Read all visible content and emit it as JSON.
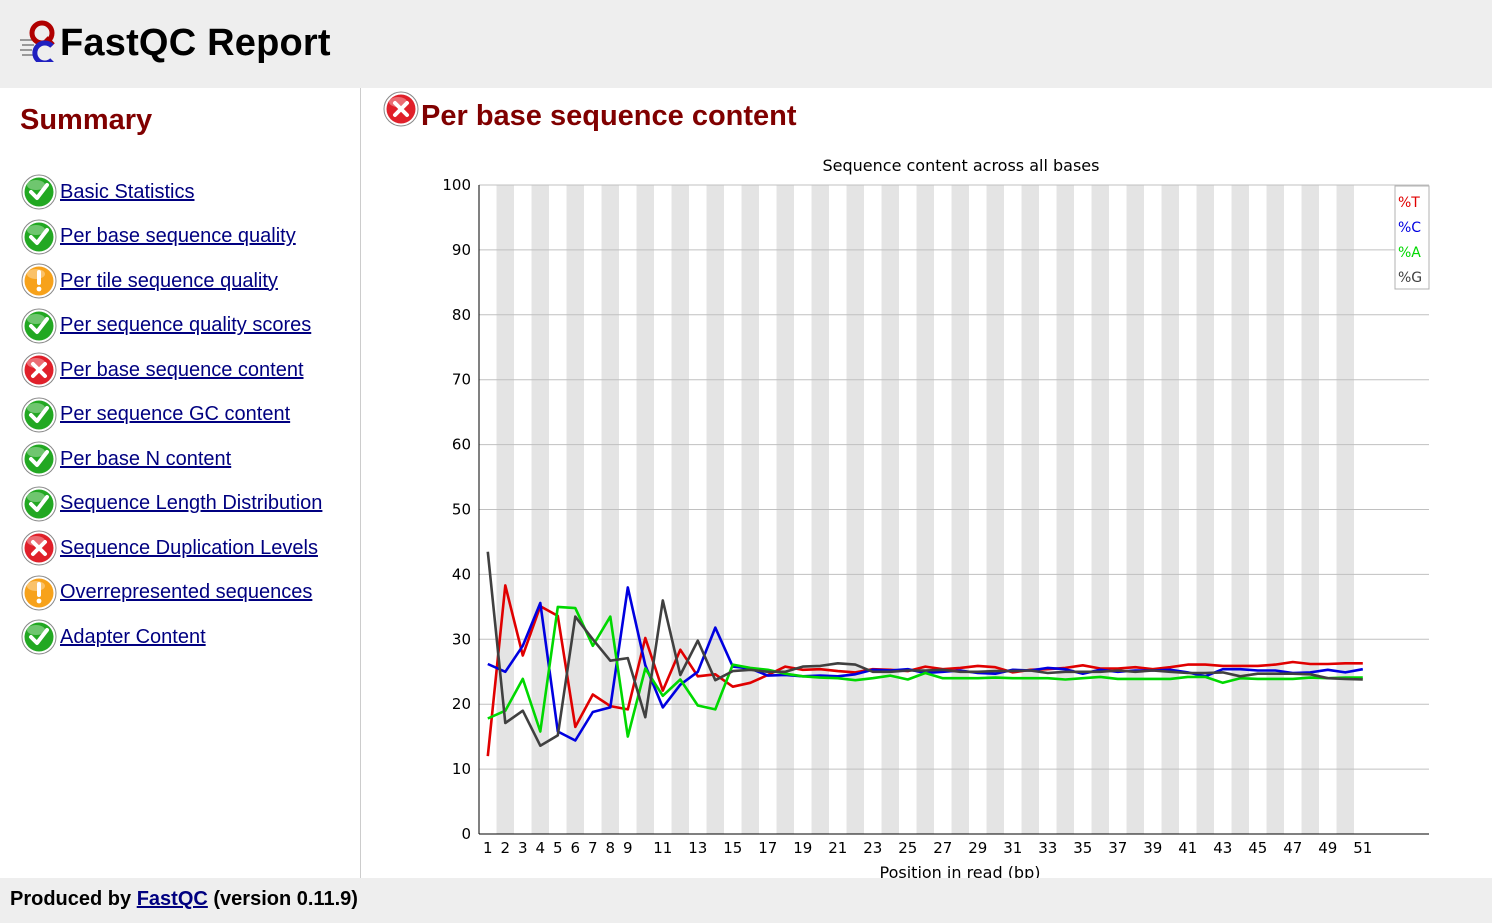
{
  "header": {
    "title": "FastQC Report"
  },
  "summary": {
    "title": "Summary",
    "items": [
      {
        "label": "Basic Statistics",
        "status": "pass"
      },
      {
        "label": "Per base sequence quality",
        "status": "pass"
      },
      {
        "label": "Per tile sequence quality",
        "status": "warn"
      },
      {
        "label": "Per sequence quality scores",
        "status": "pass"
      },
      {
        "label": "Per base sequence content",
        "status": "fail"
      },
      {
        "label": "Per sequence GC content",
        "status": "pass"
      },
      {
        "label": "Per base N content",
        "status": "pass"
      },
      {
        "label": "Sequence Length Distribution",
        "status": "pass"
      },
      {
        "label": "Sequence Duplication Levels",
        "status": "fail"
      },
      {
        "label": "Overrepresented sequences",
        "status": "warn"
      },
      {
        "label": "Adapter Content",
        "status": "pass"
      }
    ]
  },
  "module": {
    "title": "Per base sequence content",
    "status": "fail"
  },
  "colors": {
    "pass": "#22a822",
    "warn": "#f7a21b",
    "fail": "#e0202a",
    "T": "#e00000",
    "C": "#0000e0",
    "A": "#00d800",
    "G": "#404040"
  },
  "chart_data": {
    "type": "line",
    "title": "Sequence content across all bases",
    "xlabel": "Position in read (bp)",
    "ylabel": "",
    "ylim": [
      0,
      100
    ],
    "yticks": [
      0,
      10,
      20,
      30,
      40,
      50,
      60,
      70,
      80,
      90,
      100
    ],
    "x": [
      1,
      2,
      3,
      4,
      5,
      6,
      7,
      8,
      9,
      10,
      11,
      12,
      13,
      14,
      15,
      16,
      17,
      18,
      19,
      20,
      21,
      22,
      23,
      24,
      25,
      26,
      27,
      28,
      29,
      30,
      31,
      32,
      33,
      34,
      35,
      36,
      37,
      38,
      39,
      40,
      41,
      42,
      43,
      44,
      45,
      46,
      47,
      48,
      49,
      50,
      51
    ],
    "xtick_labels": [
      "1",
      "2",
      "3",
      "4",
      "5",
      "6",
      "7",
      "8",
      "9",
      "11",
      "13",
      "15",
      "17",
      "19",
      "21",
      "23",
      "25",
      "27",
      "29",
      "31",
      "33",
      "35",
      "37",
      "39",
      "41",
      "43",
      "45",
      "47",
      "49",
      "51"
    ],
    "grid": true,
    "legend_position": "top-right",
    "series": [
      {
        "name": "%T",
        "color": "#e00000",
        "values": [
          12,
          38.3,
          27.5,
          35.1,
          33.6,
          16.5,
          21.5,
          19.7,
          19.2,
          30.2,
          22.1,
          28.4,
          24.3,
          24.6,
          22.7,
          23.3,
          24.5,
          25.8,
          25.3,
          25.4,
          25.1,
          24.9,
          25.4,
          25.3,
          25.1,
          25.8,
          25.4,
          25.6,
          25.9,
          25.7,
          24.9,
          25.3,
          25.4,
          25.6,
          26.0,
          25.5,
          25.5,
          25.7,
          25.4,
          25.7,
          26.1,
          26.1,
          25.9,
          25.9,
          25.9,
          26.1,
          26.5,
          26.2,
          26.2,
          26.3,
          26.3
        ]
      },
      {
        "name": "%C",
        "color": "#0000e0",
        "values": [
          26.2,
          25.0,
          29.0,
          35.6,
          15.8,
          14.4,
          18.8,
          19.5,
          38.0,
          26.0,
          19.5,
          23.0,
          25.0,
          31.8,
          25.8,
          25.5,
          24.4,
          24.5,
          24.3,
          24.4,
          24.3,
          24.6,
          25.3,
          25.2,
          25.4,
          24.8,
          25.0,
          25.2,
          24.8,
          24.7,
          25.3,
          25.2,
          25.6,
          25.4,
          24.7,
          25.3,
          25.0,
          25.2,
          25.2,
          25.3,
          24.9,
          24.3,
          25.4,
          25.4,
          25.2,
          25.2,
          24.8,
          24.9,
          25.3,
          24.9,
          25.4
        ]
      },
      {
        "name": "%A",
        "color": "#00d800",
        "values": [
          17.8,
          19.0,
          23.9,
          15.8,
          35.0,
          34.8,
          29.0,
          33.5,
          15.0,
          25.5,
          21.3,
          23.8,
          19.8,
          19.2,
          26.1,
          25.6,
          25.3,
          24.7,
          24.3,
          24.1,
          24.0,
          23.7,
          24.0,
          24.4,
          23.8,
          24.8,
          24.0,
          24.0,
          24.0,
          24.1,
          24.0,
          24.0,
          24.0,
          23.8,
          24.0,
          24.2,
          23.9,
          23.9,
          23.9,
          23.9,
          24.2,
          24.2,
          23.3,
          24.0,
          23.9,
          23.9,
          23.9,
          24.1,
          24.0,
          24.1,
          24.1
        ]
      },
      {
        "name": "%G",
        "color": "#404040",
        "values": [
          43.5,
          17.1,
          19.0,
          13.6,
          15.2,
          33.5,
          30.0,
          26.7,
          27.1,
          18.0,
          36.0,
          24.5,
          29.8,
          23.7,
          25.1,
          25.3,
          25.0,
          25.0,
          25.8,
          25.9,
          26.3,
          26.1,
          25.0,
          25.0,
          25.2,
          25.2,
          25.3,
          25.0,
          25.0,
          25.1,
          25.1,
          25.2,
          24.8,
          25.0,
          25.0,
          25.0,
          25.2,
          25.0,
          25.2,
          25.0,
          24.8,
          24.8,
          24.9,
          24.3,
          24.7,
          24.7,
          24.7,
          24.6,
          24.0,
          23.9,
          23.8
        ]
      }
    ]
  },
  "footer": {
    "prefix": "Produced by",
    "link": "FastQC",
    "suffix": "(version 0.11.9)"
  }
}
